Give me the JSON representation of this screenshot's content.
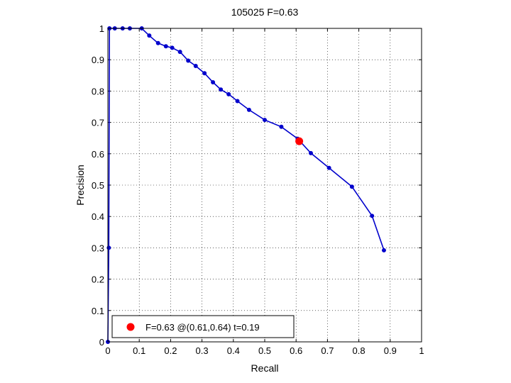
{
  "chart_data": {
    "type": "line",
    "title": "105025 F=0.63",
    "xlabel": "Recall",
    "ylabel": "Precision",
    "xlim": [
      0,
      1
    ],
    "ylim": [
      0,
      1
    ],
    "xticks": [
      0,
      0.1,
      0.2,
      0.3,
      0.4,
      0.5,
      0.6,
      0.7,
      0.8,
      0.9,
      1
    ],
    "yticks": [
      0,
      0.1,
      0.2,
      0.3,
      0.4,
      0.5,
      0.6,
      0.7,
      0.8,
      0.9,
      1
    ],
    "xtick_labels": [
      "0",
      "0.1",
      "0.2",
      "0.3",
      "0.4",
      "0.5",
      "0.6",
      "0.7",
      "0.8",
      "0.9",
      "1"
    ],
    "ytick_labels": [
      "0",
      "0.1",
      "0.2",
      "0.3",
      "0.4",
      "0.5",
      "0.6",
      "0.7",
      "0.8",
      "0.9",
      "1"
    ],
    "grid": true,
    "legend_position": "bottom-left",
    "series": [
      {
        "color": "#0000cc",
        "x": [
          0,
          0.003,
          0.005,
          0.022,
          0.047,
          0.07,
          0.108,
          0.132,
          0.16,
          0.185,
          0.205,
          0.23,
          0.256,
          0.28,
          0.308,
          0.335,
          0.36,
          0.385,
          0.413,
          0.45,
          0.5,
          0.553,
          0.605,
          0.647,
          0.705,
          0.778,
          0.842,
          0.88
        ],
        "y": [
          0,
          0.3,
          1,
          1,
          1,
          1,
          1,
          0.977,
          0.953,
          0.943,
          0.938,
          0.925,
          0.897,
          0.88,
          0.857,
          0.828,
          0.805,
          0.79,
          0.768,
          0.74,
          0.708,
          0.686,
          0.648,
          0.602,
          0.555,
          0.495,
          0.402,
          0.292
        ]
      }
    ],
    "highlight": {
      "x": 0.61,
      "y": 0.64,
      "color": "#ff0000"
    },
    "legend": {
      "label": "F=0.63 @(0.61,0.64) t=0.19"
    }
  }
}
